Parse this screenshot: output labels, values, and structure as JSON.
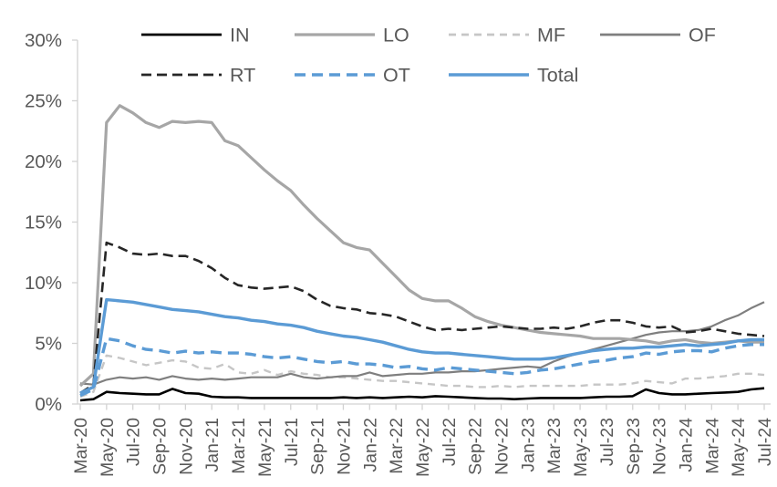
{
  "chart_data": {
    "type": "line",
    "title": "",
    "x_categories": [
      "Mar-20",
      "Apr-20",
      "May-20",
      "Jun-20",
      "Jul-20",
      "Aug-20",
      "Sep-20",
      "Oct-20",
      "Nov-20",
      "Dec-20",
      "Jan-21",
      "Feb-21",
      "Mar-21",
      "Apr-21",
      "May-21",
      "Jun-21",
      "Jul-21",
      "Aug-21",
      "Sep-21",
      "Oct-21",
      "Nov-21",
      "Dec-21",
      "Jan-22",
      "Feb-22",
      "Mar-22",
      "Apr-22",
      "May-22",
      "Jun-22",
      "Jul-22",
      "Aug-22",
      "Sep-22",
      "Oct-22",
      "Nov-22",
      "Dec-22",
      "Jan-23",
      "Feb-23",
      "Mar-23",
      "Apr-23",
      "May-23",
      "Jun-23",
      "Jul-23",
      "Aug-23",
      "Sep-23",
      "Oct-23",
      "Nov-23",
      "Dec-23",
      "Jan-24",
      "Feb-24",
      "Mar-24",
      "Apr-24",
      "May-24",
      "Jun-24",
      "Jul-24"
    ],
    "x_tick_every": 2,
    "y_axis": {
      "min": 0,
      "max": 30,
      "step": 5,
      "tick_labels": [
        "0%",
        "5%",
        "10%",
        "15%",
        "20%",
        "25%",
        "30%"
      ],
      "format": "percent"
    },
    "grid": "off",
    "legend": {
      "position": "top",
      "rows": [
        [
          "IN",
          "LO",
          "MF",
          "OF"
        ],
        [
          "RT",
          "OT",
          "Total"
        ]
      ]
    },
    "series": [
      {
        "name": "IN",
        "color": "#000000",
        "style": "solid",
        "width": 2.6,
        "zorder": 5,
        "values": [
          0.3,
          0.4,
          1.0,
          0.9,
          0.85,
          0.8,
          0.8,
          1.25,
          0.9,
          0.85,
          0.6,
          0.55,
          0.55,
          0.5,
          0.5,
          0.5,
          0.5,
          0.5,
          0.5,
          0.5,
          0.55,
          0.5,
          0.55,
          0.5,
          0.55,
          0.6,
          0.55,
          0.65,
          0.6,
          0.55,
          0.5,
          0.45,
          0.45,
          0.4,
          0.45,
          0.5,
          0.5,
          0.5,
          0.5,
          0.55,
          0.6,
          0.6,
          0.65,
          1.2,
          0.9,
          0.8,
          0.8,
          0.85,
          0.9,
          0.95,
          1.0,
          1.2,
          1.3
        ]
      },
      {
        "name": "LO",
        "color": "#A6A6A6",
        "style": "solid",
        "width": 3.2,
        "zorder": 3,
        "values": [
          1.5,
          2.5,
          23.2,
          24.6,
          24.0,
          23.2,
          22.8,
          23.3,
          23.2,
          23.3,
          23.2,
          21.7,
          21.3,
          20.3,
          19.3,
          18.4,
          17.6,
          16.4,
          15.3,
          14.3,
          13.3,
          12.9,
          12.7,
          11.6,
          10.5,
          9.4,
          8.7,
          8.5,
          8.5,
          7.9,
          7.2,
          6.8,
          6.5,
          6.3,
          6.1,
          5.9,
          5.8,
          5.7,
          5.6,
          5.4,
          5.4,
          5.4,
          5.3,
          5.2,
          5.0,
          5.2,
          5.3,
          5.1,
          5.0,
          5.1,
          5.2,
          5.1,
          5.1
        ]
      },
      {
        "name": "MF",
        "color": "#C6C6C6",
        "style": "dashed",
        "dash": "8 6",
        "width": 2.4,
        "zorder": 1,
        "values": [
          0.6,
          1.0,
          4.0,
          3.8,
          3.5,
          3.2,
          3.4,
          3.6,
          3.5,
          3.0,
          2.9,
          3.3,
          2.6,
          2.5,
          2.8,
          2.4,
          2.7,
          2.5,
          2.4,
          2.2,
          2.2,
          2.1,
          2.0,
          1.9,
          1.9,
          1.8,
          1.7,
          1.6,
          1.5,
          1.5,
          1.4,
          1.4,
          1.5,
          1.4,
          1.5,
          1.5,
          1.5,
          1.5,
          1.5,
          1.6,
          1.6,
          1.6,
          1.7,
          1.9,
          1.8,
          1.7,
          2.1,
          2.1,
          2.2,
          2.3,
          2.5,
          2.5,
          2.4
        ]
      },
      {
        "name": "OF",
        "color": "#7F7F7F",
        "style": "solid",
        "width": 2.2,
        "zorder": 2,
        "values": [
          1.7,
          1.6,
          2.0,
          2.2,
          2.1,
          2.2,
          2.0,
          2.3,
          2.1,
          2.0,
          2.1,
          2.0,
          2.1,
          2.2,
          2.2,
          2.2,
          2.5,
          2.2,
          2.1,
          2.2,
          2.3,
          2.3,
          2.6,
          2.3,
          2.4,
          2.5,
          2.5,
          2.6,
          2.6,
          2.7,
          2.7,
          2.8,
          2.9,
          3.0,
          3.1,
          3.0,
          3.5,
          3.9,
          4.2,
          4.5,
          4.8,
          5.1,
          5.4,
          5.7,
          5.9,
          6.0,
          6.0,
          6.1,
          6.4,
          6.9,
          7.3,
          7.9,
          8.4
        ]
      },
      {
        "name": "RT",
        "color": "#262626",
        "style": "dashed",
        "dash": "11 6",
        "width": 2.6,
        "zorder": 4,
        "values": [
          0.9,
          1.6,
          13.3,
          12.9,
          12.4,
          12.3,
          12.4,
          12.2,
          12.2,
          11.8,
          11.2,
          10.4,
          9.8,
          9.6,
          9.5,
          9.6,
          9.7,
          9.3,
          8.6,
          8.1,
          7.9,
          7.8,
          7.5,
          7.4,
          7.2,
          6.8,
          6.4,
          6.1,
          6.2,
          6.1,
          6.2,
          6.3,
          6.4,
          6.3,
          6.2,
          6.2,
          6.3,
          6.2,
          6.4,
          6.7,
          6.9,
          6.9,
          6.7,
          6.4,
          6.3,
          6.4,
          5.9,
          6.0,
          6.2,
          6.0,
          5.8,
          5.7,
          5.6
        ]
      },
      {
        "name": "OT",
        "color": "#5B9BD5",
        "style": "dashed",
        "dash": "12 7",
        "width": 3.4,
        "zorder": 6,
        "values": [
          0.7,
          1.2,
          5.4,
          5.2,
          4.8,
          4.5,
          4.4,
          4.2,
          4.35,
          4.2,
          4.3,
          4.2,
          4.2,
          4.1,
          3.9,
          3.8,
          3.9,
          3.7,
          3.5,
          3.4,
          3.5,
          3.3,
          3.3,
          3.2,
          3.0,
          3.1,
          2.9,
          2.8,
          3.0,
          2.9,
          2.8,
          2.7,
          2.6,
          2.5,
          2.6,
          2.8,
          2.9,
          3.1,
          3.3,
          3.5,
          3.6,
          3.8,
          3.9,
          4.2,
          4.1,
          4.3,
          4.4,
          4.4,
          4.3,
          4.6,
          4.8,
          4.9,
          4.9
        ]
      },
      {
        "name": "Total",
        "color": "#5B9BD5",
        "style": "solid",
        "width": 3.4,
        "zorder": 7,
        "values": [
          0.9,
          1.4,
          8.6,
          8.5,
          8.4,
          8.2,
          8.0,
          7.8,
          7.7,
          7.6,
          7.4,
          7.2,
          7.1,
          6.9,
          6.8,
          6.6,
          6.5,
          6.3,
          6.0,
          5.8,
          5.6,
          5.5,
          5.3,
          5.1,
          4.8,
          4.5,
          4.3,
          4.2,
          4.2,
          4.1,
          4.0,
          3.9,
          3.8,
          3.7,
          3.7,
          3.7,
          3.8,
          4.0,
          4.2,
          4.4,
          4.5,
          4.6,
          4.6,
          4.7,
          4.7,
          4.8,
          4.9,
          4.8,
          4.9,
          5.0,
          5.2,
          5.3,
          5.3
        ]
      }
    ],
    "axis_color": "#D2D2D2",
    "label_color": "#595959"
  }
}
